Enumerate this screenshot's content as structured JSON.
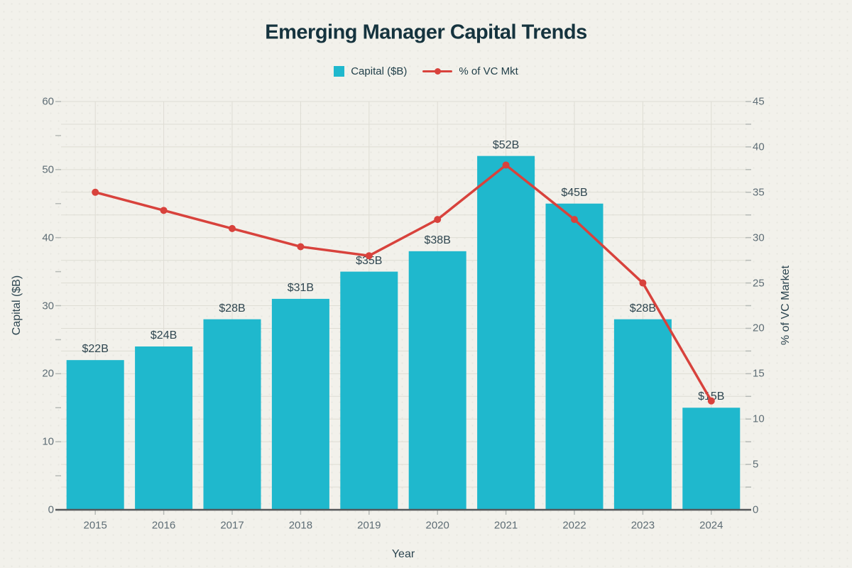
{
  "header": {
    "title": "Emerging Manager Capital Trends"
  },
  "colors": {
    "background": "#F2F1EB",
    "bar": "#1FB8CD",
    "line": "#D8423C",
    "title_text": "#15333E",
    "tick_text": "#5E6D75",
    "data_label_text": "#2F4650",
    "gridline": "#DEDDD4",
    "axis_line": "#55585A",
    "tick_mark": "#B6BAB6"
  },
  "chart_data": {
    "type": "combo-bar-line",
    "title": "Emerging Manager Capital Trends",
    "categories": [
      "2015",
      "2016",
      "2017",
      "2018",
      "2019",
      "2020",
      "2021",
      "2022",
      "2023",
      "2024"
    ],
    "series": [
      {
        "name": "Capital ($B)",
        "chart": "bar",
        "axis": "left",
        "color": "#1FB8CD",
        "values": [
          22,
          24,
          28,
          31,
          35,
          38,
          52,
          45,
          28,
          15
        ],
        "labels": [
          "$22B",
          "$24B",
          "$28B",
          "$31B",
          "$35B",
          "$38B",
          "$52B",
          "$45B",
          "$28B",
          "$15B"
        ]
      },
      {
        "name": "% of VC Mkt",
        "chart": "line",
        "axis": "right",
        "color": "#D8423C",
        "values": [
          35,
          33,
          31,
          29,
          28,
          32,
          38,
          32,
          25,
          12
        ]
      }
    ],
    "xlabel": "Year",
    "ylabel": "Capital ($B)",
    "y2label": "% of VC Market",
    "ylim": [
      0,
      60
    ],
    "y2lim": [
      0,
      45
    ],
    "yticks": [
      0,
      10,
      20,
      30,
      40,
      50,
      60
    ],
    "y2ticks": [
      0,
      5,
      10,
      15,
      20,
      25,
      30,
      35,
      40,
      45
    ],
    "grid": true,
    "legend_position": "top-center"
  }
}
